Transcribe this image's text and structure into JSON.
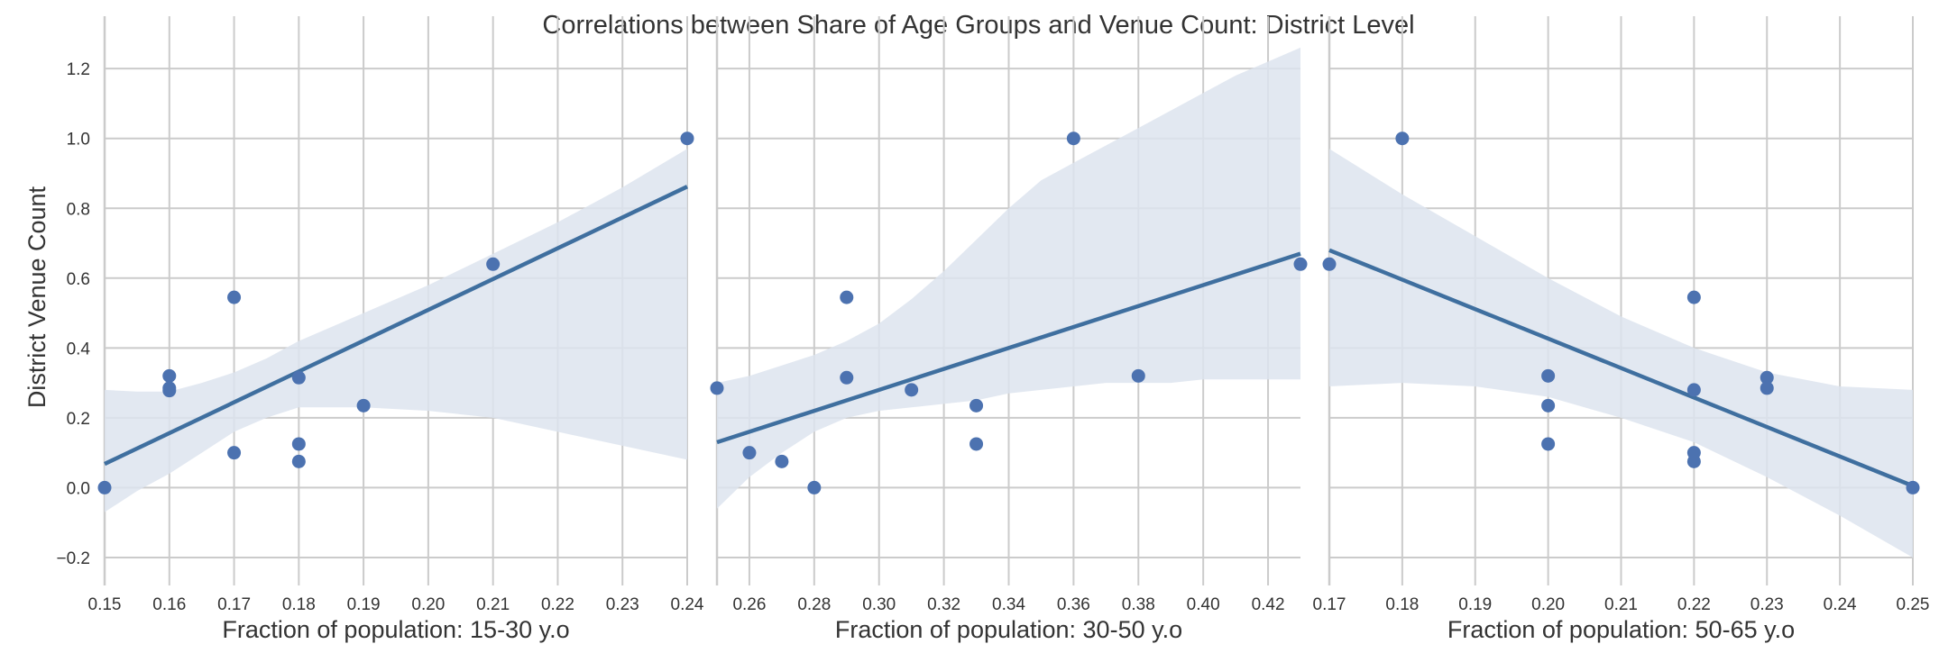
{
  "title": "Correlations between Share of Age Groups and Venue Count: District Level",
  "shared_ylabel": "District Venue Count",
  "colors": {
    "point": "#4c72b0",
    "line": "#3f6f9f",
    "band": "#dde4ef",
    "grid": "#cbcbcb",
    "text": "#333333"
  },
  "chart_data": [
    {
      "type": "scatter",
      "xlabel": "Fraction of population: 15-30 y.o",
      "ylabel": "District Venue Count",
      "xlim": [
        0.15,
        0.24
      ],
      "ylim": [
        -0.28,
        1.35
      ],
      "xticks": [
        0.15,
        0.16,
        0.17,
        0.18,
        0.19,
        0.2,
        0.21,
        0.22,
        0.23,
        0.24
      ],
      "xtick_labels": [
        "0.15",
        "0.16",
        "0.17",
        "0.18",
        "0.19",
        "0.20",
        "0.21",
        "0.22",
        "0.23",
        "0.24"
      ],
      "yticks": [
        -0.2,
        0.0,
        0.2,
        0.4,
        0.6,
        0.8,
        1.0,
        1.2
      ],
      "ytick_labels": [
        "−0.2",
        "0.0",
        "0.2",
        "0.4",
        "0.6",
        "0.8",
        "1.0",
        "1.2"
      ],
      "grid": true,
      "points": [
        {
          "x": 0.15,
          "y": 0.0
        },
        {
          "x": 0.16,
          "y": 0.32
        },
        {
          "x": 0.16,
          "y": 0.285
        },
        {
          "x": 0.16,
          "y": 0.278
        },
        {
          "x": 0.17,
          "y": 0.545
        },
        {
          "x": 0.17,
          "y": 0.1
        },
        {
          "x": 0.18,
          "y": 0.315
        },
        {
          "x": 0.18,
          "y": 0.125
        },
        {
          "x": 0.18,
          "y": 0.075
        },
        {
          "x": 0.19,
          "y": 0.235
        },
        {
          "x": 0.21,
          "y": 0.64
        },
        {
          "x": 0.24,
          "y": 1.0
        }
      ],
      "regression": {
        "x": [
          0.15,
          0.24
        ],
        "y": [
          0.068,
          0.862
        ]
      },
      "band_upper": [
        {
          "x": 0.15,
          "y": 0.28
        },
        {
          "x": 0.155,
          "y": 0.275
        },
        {
          "x": 0.16,
          "y": 0.275
        },
        {
          "x": 0.165,
          "y": 0.3
        },
        {
          "x": 0.17,
          "y": 0.33
        },
        {
          "x": 0.175,
          "y": 0.37
        },
        {
          "x": 0.18,
          "y": 0.42
        },
        {
          "x": 0.19,
          "y": 0.5
        },
        {
          "x": 0.2,
          "y": 0.58
        },
        {
          "x": 0.21,
          "y": 0.67
        },
        {
          "x": 0.22,
          "y": 0.76
        },
        {
          "x": 0.23,
          "y": 0.86
        },
        {
          "x": 0.24,
          "y": 0.97
        }
      ],
      "band_lower": [
        {
          "x": 0.15,
          "y": -0.07
        },
        {
          "x": 0.155,
          "y": -0.01
        },
        {
          "x": 0.16,
          "y": 0.04
        },
        {
          "x": 0.165,
          "y": 0.1
        },
        {
          "x": 0.17,
          "y": 0.16
        },
        {
          "x": 0.175,
          "y": 0.2
        },
        {
          "x": 0.18,
          "y": 0.23
        },
        {
          "x": 0.19,
          "y": 0.23
        },
        {
          "x": 0.2,
          "y": 0.22
        },
        {
          "x": 0.21,
          "y": 0.2
        },
        {
          "x": 0.22,
          "y": 0.16
        },
        {
          "x": 0.23,
          "y": 0.12
        },
        {
          "x": 0.24,
          "y": 0.08
        }
      ]
    },
    {
      "type": "scatter",
      "xlabel": "Fraction of population: 30-50 y.o",
      "ylabel": "",
      "xlim": [
        0.25,
        0.43
      ],
      "ylim": [
        -0.28,
        1.35
      ],
      "xticks": [
        0.26,
        0.28,
        0.3,
        0.32,
        0.34,
        0.36,
        0.38,
        0.4,
        0.42
      ],
      "xtick_labels": [
        "0.26",
        "0.28",
        "0.30",
        "0.32",
        "0.34",
        "0.36",
        "0.38",
        "0.40",
        "0.42"
      ],
      "yticks": [
        -0.2,
        0.0,
        0.2,
        0.4,
        0.6,
        0.8,
        1.0,
        1.2
      ],
      "ytick_labels": [
        "",
        "",
        "",
        "",
        "",
        "",
        "",
        ""
      ],
      "grid": true,
      "points": [
        {
          "x": 0.25,
          "y": 0.285
        },
        {
          "x": 0.26,
          "y": 0.1
        },
        {
          "x": 0.27,
          "y": 0.075
        },
        {
          "x": 0.28,
          "y": 0.0
        },
        {
          "x": 0.29,
          "y": 0.545
        },
        {
          "x": 0.29,
          "y": 0.315
        },
        {
          "x": 0.31,
          "y": 0.28
        },
        {
          "x": 0.33,
          "y": 0.235
        },
        {
          "x": 0.33,
          "y": 0.125
        },
        {
          "x": 0.36,
          "y": 1.0
        },
        {
          "x": 0.38,
          "y": 0.32
        },
        {
          "x": 0.43,
          "y": 0.64
        }
      ],
      "regression": {
        "x": [
          0.25,
          0.43
        ],
        "y": [
          0.13,
          0.67
        ]
      },
      "band_upper": [
        {
          "x": 0.25,
          "y": 0.3
        },
        {
          "x": 0.26,
          "y": 0.32
        },
        {
          "x": 0.27,
          "y": 0.35
        },
        {
          "x": 0.28,
          "y": 0.38
        },
        {
          "x": 0.29,
          "y": 0.42
        },
        {
          "x": 0.3,
          "y": 0.47
        },
        {
          "x": 0.31,
          "y": 0.54
        },
        {
          "x": 0.32,
          "y": 0.62
        },
        {
          "x": 0.33,
          "y": 0.71
        },
        {
          "x": 0.34,
          "y": 0.8
        },
        {
          "x": 0.35,
          "y": 0.88
        },
        {
          "x": 0.36,
          "y": 0.93
        },
        {
          "x": 0.37,
          "y": 0.98
        },
        {
          "x": 0.38,
          "y": 1.03
        },
        {
          "x": 0.39,
          "y": 1.08
        },
        {
          "x": 0.4,
          "y": 1.13
        },
        {
          "x": 0.41,
          "y": 1.18
        },
        {
          "x": 0.42,
          "y": 1.22
        },
        {
          "x": 0.43,
          "y": 1.26
        }
      ],
      "band_lower": [
        {
          "x": 0.25,
          "y": -0.06
        },
        {
          "x": 0.26,
          "y": 0.03
        },
        {
          "x": 0.27,
          "y": 0.1
        },
        {
          "x": 0.28,
          "y": 0.16
        },
        {
          "x": 0.29,
          "y": 0.2
        },
        {
          "x": 0.3,
          "y": 0.22
        },
        {
          "x": 0.31,
          "y": 0.23
        },
        {
          "x": 0.32,
          "y": 0.24
        },
        {
          "x": 0.33,
          "y": 0.25
        },
        {
          "x": 0.34,
          "y": 0.27
        },
        {
          "x": 0.35,
          "y": 0.28
        },
        {
          "x": 0.36,
          "y": 0.29
        },
        {
          "x": 0.37,
          "y": 0.3
        },
        {
          "x": 0.38,
          "y": 0.3
        },
        {
          "x": 0.39,
          "y": 0.3
        },
        {
          "x": 0.4,
          "y": 0.31
        },
        {
          "x": 0.41,
          "y": 0.31
        },
        {
          "x": 0.42,
          "y": 0.31
        },
        {
          "x": 0.43,
          "y": 0.31
        }
      ]
    },
    {
      "type": "scatter",
      "xlabel": "Fraction of population: 50-65 y.o",
      "ylabel": "",
      "xlim": [
        0.17,
        0.25
      ],
      "ylim": [
        -0.28,
        1.35
      ],
      "xticks": [
        0.17,
        0.18,
        0.19,
        0.2,
        0.21,
        0.22,
        0.23,
        0.24,
        0.25
      ],
      "xtick_labels": [
        "0.17",
        "0.18",
        "0.19",
        "0.20",
        "0.21",
        "0.22",
        "0.23",
        "0.24",
        "0.25"
      ],
      "yticks": [
        -0.2,
        0.0,
        0.2,
        0.4,
        0.6,
        0.8,
        1.0,
        1.2
      ],
      "ytick_labels": [
        "",
        "",
        "",
        "",
        "",
        "",
        "",
        ""
      ],
      "grid": true,
      "points": [
        {
          "x": 0.17,
          "y": 0.64
        },
        {
          "x": 0.18,
          "y": 1.0
        },
        {
          "x": 0.2,
          "y": 0.32
        },
        {
          "x": 0.2,
          "y": 0.235
        },
        {
          "x": 0.2,
          "y": 0.125
        },
        {
          "x": 0.22,
          "y": 0.545
        },
        {
          "x": 0.22,
          "y": 0.28
        },
        {
          "x": 0.22,
          "y": 0.1
        },
        {
          "x": 0.22,
          "y": 0.075
        },
        {
          "x": 0.23,
          "y": 0.315
        },
        {
          "x": 0.23,
          "y": 0.285
        },
        {
          "x": 0.25,
          "y": 0.0
        }
      ],
      "regression": {
        "x": [
          0.17,
          0.25
        ],
        "y": [
          0.68,
          0.005
        ]
      },
      "band_upper": [
        {
          "x": 0.17,
          "y": 0.97
        },
        {
          "x": 0.18,
          "y": 0.84
        },
        {
          "x": 0.19,
          "y": 0.72
        },
        {
          "x": 0.2,
          "y": 0.6
        },
        {
          "x": 0.21,
          "y": 0.49
        },
        {
          "x": 0.22,
          "y": 0.4
        },
        {
          "x": 0.23,
          "y": 0.33
        },
        {
          "x": 0.24,
          "y": 0.29
        },
        {
          "x": 0.25,
          "y": 0.28
        }
      ],
      "band_lower": [
        {
          "x": 0.17,
          "y": 0.29
        },
        {
          "x": 0.18,
          "y": 0.3
        },
        {
          "x": 0.19,
          "y": 0.29
        },
        {
          "x": 0.2,
          "y": 0.26
        },
        {
          "x": 0.21,
          "y": 0.2
        },
        {
          "x": 0.22,
          "y": 0.13
        },
        {
          "x": 0.23,
          "y": 0.03
        },
        {
          "x": 0.24,
          "y": -0.08
        },
        {
          "x": 0.25,
          "y": -0.2
        }
      ]
    }
  ]
}
